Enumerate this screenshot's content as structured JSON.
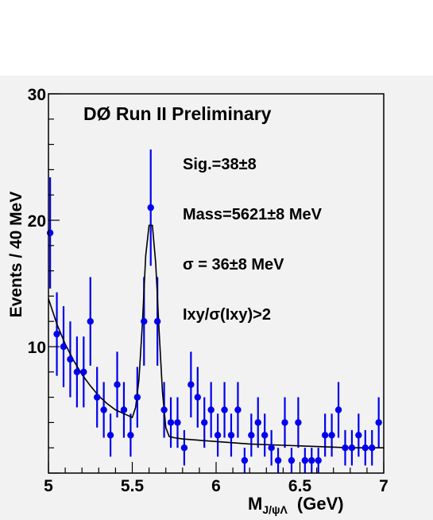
{
  "chart_data": {
    "type": "scatter",
    "title": "DØ Run II Preliminary",
    "annotations": [
      "Sig.=38±8",
      "Mass=5621±8 MeV",
      "σ = 36±8 MeV",
      "Ixy/σ(Ixy)>2"
    ],
    "xlabel": "M",
    "xlabel_sub": "J/ψΛ",
    "xlabel_unit": "(GeV)",
    "ylabel": "Events / 40  MeV",
    "xlim": [
      5.0,
      7.0
    ],
    "ylim": [
      0,
      30
    ],
    "x_ticks": [
      "5",
      "5.5",
      "6",
      "6.5",
      "7"
    ],
    "y_ticks": [
      "10",
      "20",
      "30"
    ],
    "grid": false,
    "series": [
      {
        "kind": "data_points_with_errors",
        "color": "#0000ee",
        "x": [
          5.01,
          5.05,
          5.09,
          5.13,
          5.17,
          5.21,
          5.25,
          5.29,
          5.33,
          5.37,
          5.41,
          5.45,
          5.49,
          5.53,
          5.57,
          5.61,
          5.65,
          5.69,
          5.73,
          5.77,
          5.81,
          5.85,
          5.89,
          5.93,
          5.97,
          6.01,
          6.05,
          6.09,
          6.13,
          6.17,
          6.21,
          6.25,
          6.29,
          6.33,
          6.37,
          6.41,
          6.45,
          6.49,
          6.53,
          6.57,
          6.61,
          6.65,
          6.69,
          6.73,
          6.77,
          6.81,
          6.85,
          6.89,
          6.93,
          6.97
        ],
        "y": [
          19,
          11,
          10,
          9,
          8,
          8,
          12,
          6,
          5,
          3,
          7,
          5,
          3,
          6,
          12,
          21,
          12,
          5,
          4,
          4,
          2,
          7,
          6,
          4,
          5,
          3,
          5,
          3,
          5,
          1,
          3,
          4,
          3,
          2,
          1,
          4,
          1,
          4,
          1,
          1,
          1,
          3,
          3,
          5,
          2,
          2,
          3,
          2,
          2,
          4
        ],
        "yerr": [
          4.4,
          3.3,
          3.2,
          3.0,
          2.8,
          2.8,
          3.5,
          2.4,
          2.2,
          1.7,
          2.6,
          2.2,
          1.7,
          2.4,
          3.5,
          4.6,
          3.5,
          2.2,
          2.0,
          2.0,
          1.4,
          2.6,
          2.4,
          2.0,
          2.2,
          1.7,
          2.2,
          1.7,
          2.2,
          1.0,
          1.7,
          2.0,
          1.7,
          1.4,
          1.0,
          2.0,
          1.0,
          2.0,
          1.0,
          1.0,
          1.0,
          1.7,
          1.7,
          2.2,
          1.4,
          1.4,
          1.7,
          1.4,
          1.4,
          2.0
        ]
      },
      {
        "kind": "fit_curve",
        "color": "#000000",
        "x": [
          5.0,
          5.05,
          5.1,
          5.15,
          5.2,
          5.25,
          5.3,
          5.35,
          5.4,
          5.45,
          5.5,
          5.52,
          5.54,
          5.56,
          5.58,
          5.6,
          5.62,
          5.64,
          5.66,
          5.68,
          5.7,
          5.72,
          5.75,
          5.8,
          5.9,
          6.0,
          6.2,
          6.4,
          6.6,
          6.8,
          7.0
        ],
        "y": [
          13.8,
          11.8,
          10.2,
          8.9,
          7.8,
          6.9,
          6.1,
          5.5,
          5.0,
          4.7,
          4.4,
          5.2,
          7.4,
          11.8,
          17.2,
          19.6,
          19.6,
          16.6,
          11.2,
          6.4,
          3.6,
          2.9,
          2.8,
          2.7,
          2.6,
          2.5,
          2.3,
          2.2,
          2.1,
          2.0,
          2.0
        ]
      }
    ]
  }
}
